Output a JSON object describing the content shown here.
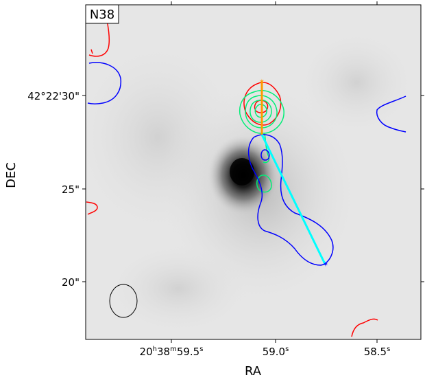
{
  "chart_data": {
    "type": "image-contour",
    "panel_label": "N38",
    "xlabel": "RA",
    "ylabel": "DEC",
    "x_ticks": [
      {
        "label_main": "20",
        "sup1": "h",
        "mid": "38",
        "sup2": "m",
        "tail": "59.5",
        "sup3": "s"
      },
      {
        "label_main": "59.0",
        "sup1": "s"
      },
      {
        "label_main": "58.5",
        "sup1": "s"
      }
    ],
    "y_ticks": [
      "42°22'30\"",
      "25\"",
      "20\""
    ],
    "background": "grayscale intensity image with a dark compact source",
    "contour_colors": {
      "red": "#ff0000",
      "blue": "#0000ff",
      "green": "#00ee77",
      "outflow_red_segment": "#ff9900",
      "outflow_blue_segment": "#00ffff",
      "beam": "#000000"
    },
    "grid": false
  }
}
